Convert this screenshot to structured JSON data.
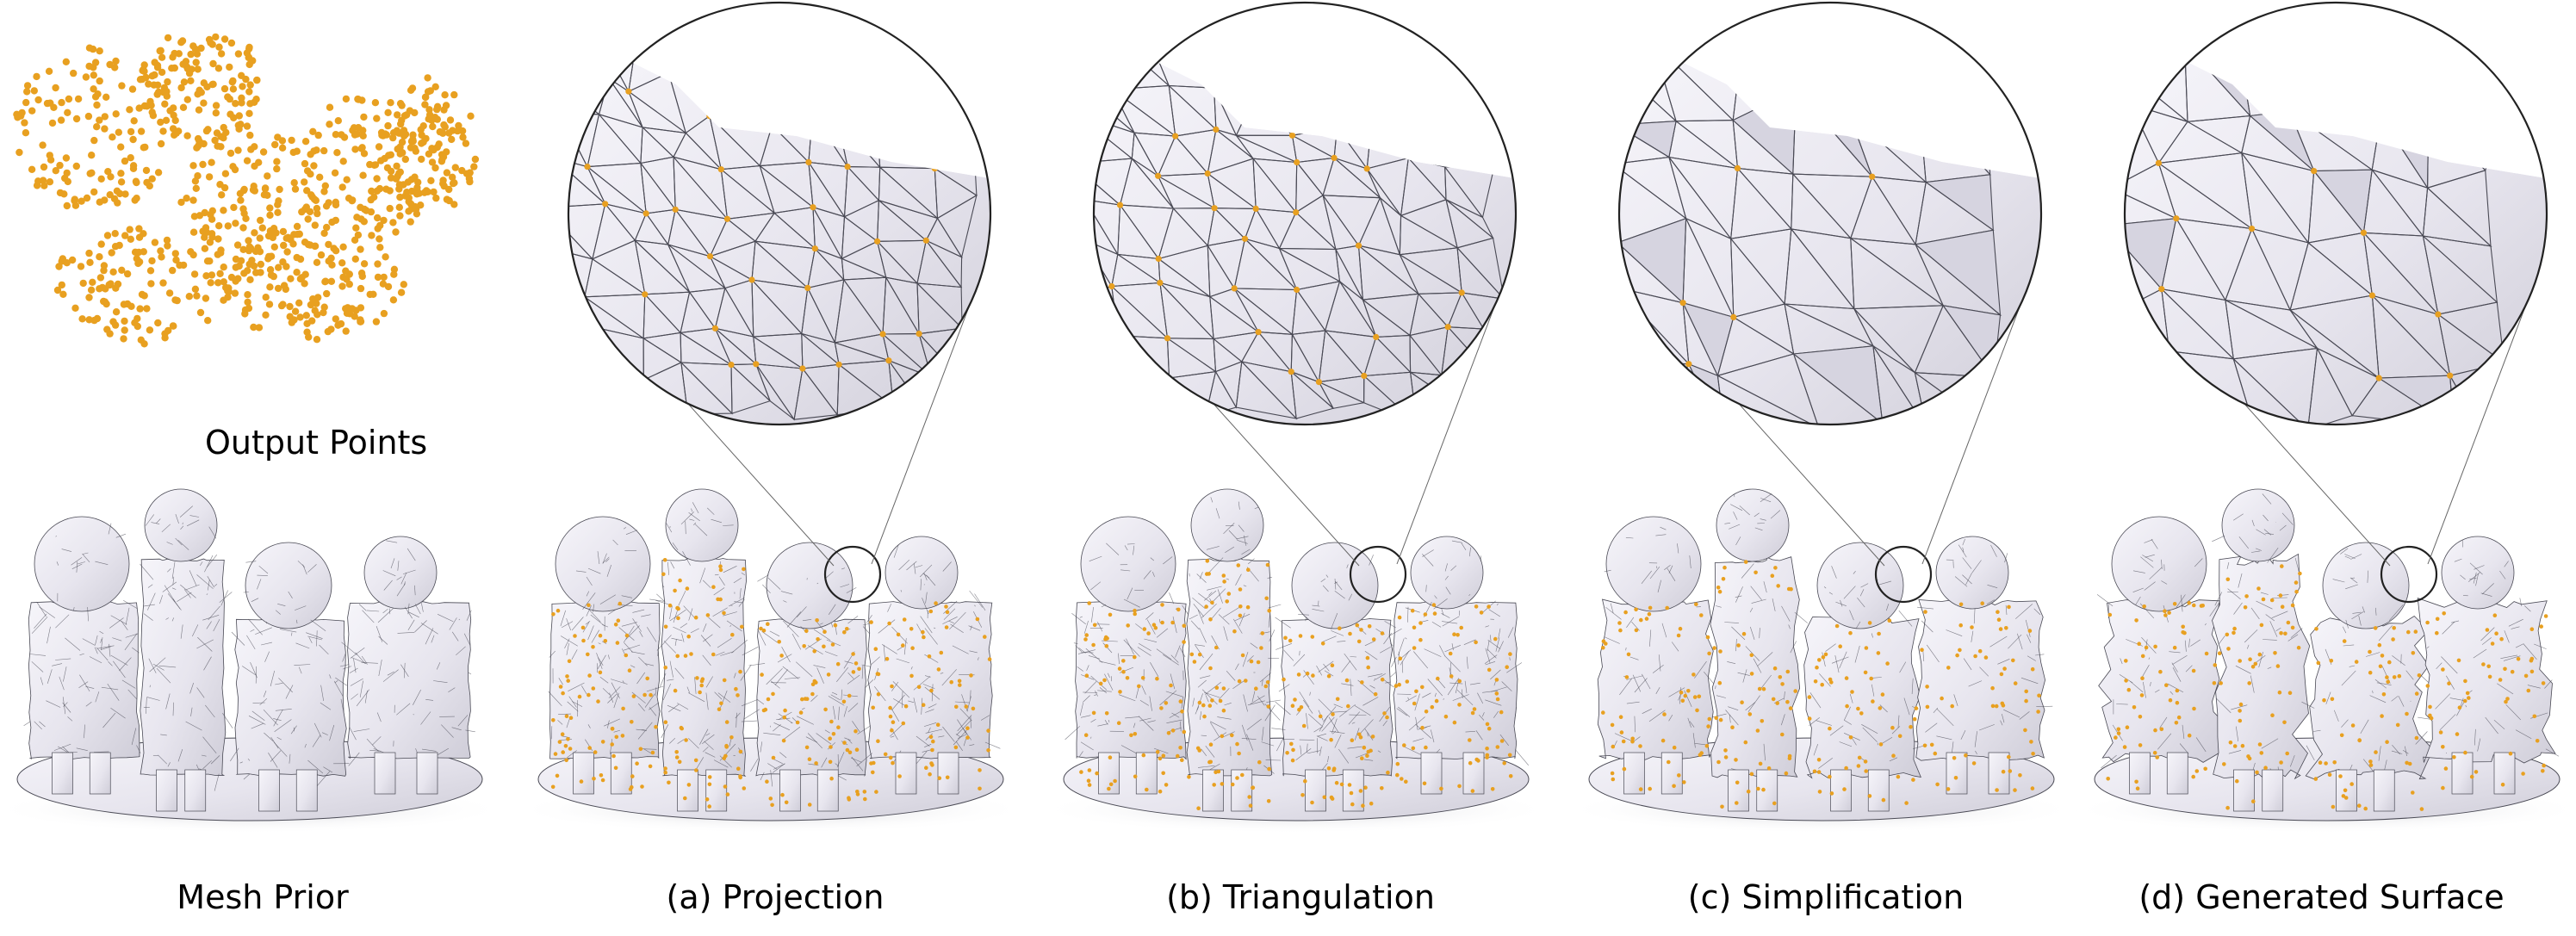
{
  "figure": {
    "point_cloud_label": "Output Points",
    "panels": [
      {
        "caption": "Mesh Prior",
        "variant": "prior",
        "has_points": false,
        "has_zoom": false
      },
      {
        "caption": "(a) Projection",
        "variant": "projection",
        "has_points": true,
        "has_zoom": true
      },
      {
        "caption": "(b) Triangulation",
        "variant": "triangulation",
        "has_points": true,
        "has_zoom": true
      },
      {
        "caption": "(c) Simplification",
        "variant": "simplification",
        "has_points": true,
        "has_zoom": true
      },
      {
        "caption": "(d) Generated Surface",
        "variant": "generated",
        "has_points": true,
        "has_zoom": true
      }
    ],
    "colors": {
      "point": "#e8a020",
      "mesh_fill": "#eceaf3",
      "mesh_edge": "#4a4a55",
      "shadow": "#d9d9de",
      "outline": "#222222"
    }
  }
}
